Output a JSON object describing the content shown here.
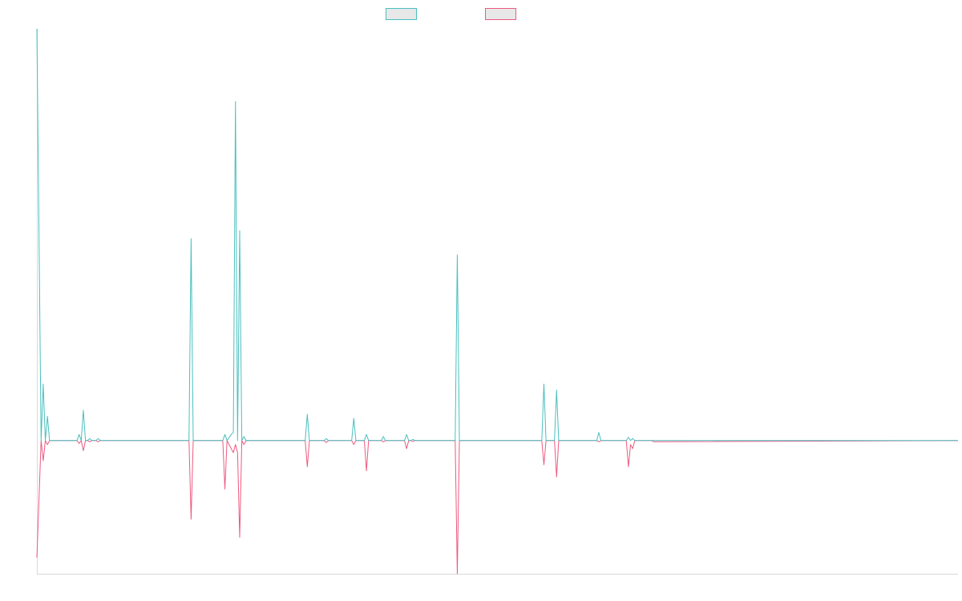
{
  "colors": {
    "teal": "#4bbfbf",
    "pink": "#ec5a80",
    "axis": "#d9d9d9",
    "legend_fill": "#e8e8e8"
  },
  "legend": [
    {
      "name": "",
      "color": "#4bbfbf"
    },
    {
      "name": "",
      "color": "#ec5a80"
    }
  ],
  "chart_data": {
    "type": "line",
    "title": "",
    "xlabel": "",
    "ylabel": "",
    "x_axis": {
      "min": 0,
      "max": 218,
      "ticks_shown": false
    },
    "y_axis": {
      "min": -33,
      "max": 102,
      "ticks_shown": false
    },
    "grid": false,
    "legend_position": "top-center",
    "series": [
      {
        "color": "#4bbfbf",
        "points": [
          [
            0,
            102
          ],
          [
            1,
            0
          ],
          [
            1.5,
            14
          ],
          [
            2,
            0
          ],
          [
            2.5,
            6
          ],
          [
            3,
            0
          ],
          [
            9.5,
            0
          ],
          [
            10,
            1.5
          ],
          [
            10.5,
            0
          ],
          [
            11,
            7.5
          ],
          [
            11.5,
            0
          ],
          [
            12,
            0
          ],
          [
            12.5,
            0.5
          ],
          [
            13,
            0
          ],
          [
            14,
            0
          ],
          [
            14.5,
            0.5
          ],
          [
            15,
            0
          ],
          [
            36,
            0
          ],
          [
            36.5,
            50
          ],
          [
            37,
            0
          ],
          [
            44,
            0
          ],
          [
            44.5,
            1.5
          ],
          [
            45,
            0
          ],
          [
            46,
            1.5
          ],
          [
            46.5,
            2
          ],
          [
            47,
            84
          ],
          [
            47.5,
            0
          ],
          [
            48,
            52
          ],
          [
            48.5,
            0
          ],
          [
            49,
            1
          ],
          [
            49.5,
            0
          ],
          [
            63.5,
            0
          ],
          [
            64,
            6.5
          ],
          [
            64.5,
            0
          ],
          [
            68,
            0
          ],
          [
            68.5,
            0.5
          ],
          [
            69,
            0
          ],
          [
            74.5,
            0
          ],
          [
            75,
            5.5
          ],
          [
            75.5,
            0
          ],
          [
            77.5,
            0
          ],
          [
            78,
            1.5
          ],
          [
            78.5,
            0
          ],
          [
            81.5,
            0
          ],
          [
            82,
            1
          ],
          [
            82.5,
            0
          ],
          [
            87,
            0
          ],
          [
            87.5,
            1.5
          ],
          [
            88,
            0
          ],
          [
            88.5,
            0
          ],
          [
            89,
            0.3
          ],
          [
            89.5,
            0
          ],
          [
            99,
            0
          ],
          [
            99.5,
            46
          ],
          [
            100,
            0
          ],
          [
            119.5,
            0
          ],
          [
            120,
            14
          ],
          [
            120.5,
            0
          ],
          [
            122.5,
            0
          ],
          [
            123,
            12.5
          ],
          [
            123.5,
            0
          ],
          [
            132.5,
            0
          ],
          [
            133,
            2
          ],
          [
            133.5,
            0
          ],
          [
            139.5,
            0
          ],
          [
            140,
            0.8
          ],
          [
            140.5,
            0
          ],
          [
            141,
            0.5
          ],
          [
            141.5,
            0
          ],
          [
            145.5,
            0
          ],
          [
            146,
            0
          ],
          [
            218,
            0
          ]
        ]
      },
      {
        "color": "#ec5a80",
        "points": [
          [
            0,
            -29
          ],
          [
            1,
            0
          ],
          [
            1.5,
            -5
          ],
          [
            2,
            0
          ],
          [
            2.5,
            -1
          ],
          [
            3,
            0
          ],
          [
            9.5,
            0
          ],
          [
            10,
            -0.7
          ],
          [
            10.5,
            0
          ],
          [
            11,
            -2.5
          ],
          [
            11.5,
            0
          ],
          [
            12,
            0
          ],
          [
            12.5,
            -0.3
          ],
          [
            13,
            0
          ],
          [
            14,
            0
          ],
          [
            14.5,
            -0.3
          ],
          [
            15,
            0
          ],
          [
            36,
            0
          ],
          [
            36.5,
            -19.5
          ],
          [
            37,
            0
          ],
          [
            44,
            0
          ],
          [
            44.5,
            -12
          ],
          [
            45,
            0
          ],
          [
            46,
            -2
          ],
          [
            46.5,
            -3
          ],
          [
            47,
            -1
          ],
          [
            47.5,
            -3
          ],
          [
            48,
            -24
          ],
          [
            48.5,
            0
          ],
          [
            49,
            -1
          ],
          [
            49.5,
            0
          ],
          [
            63.5,
            0
          ],
          [
            64,
            -6.5
          ],
          [
            64.5,
            0
          ],
          [
            68,
            0
          ],
          [
            68.5,
            -0.5
          ],
          [
            69,
            0
          ],
          [
            74.5,
            0
          ],
          [
            75,
            -1
          ],
          [
            75.5,
            0
          ],
          [
            77.5,
            0
          ],
          [
            78,
            -7.5
          ],
          [
            78.5,
            0
          ],
          [
            81.5,
            0
          ],
          [
            82,
            -0.3
          ],
          [
            82.5,
            0
          ],
          [
            87,
            0
          ],
          [
            87.5,
            -2
          ],
          [
            88,
            0
          ],
          [
            88.5,
            0
          ],
          [
            89,
            -0.2
          ],
          [
            89.5,
            0
          ],
          [
            99,
            0
          ],
          [
            99.5,
            -33
          ],
          [
            100,
            0
          ],
          [
            119.5,
            0
          ],
          [
            120,
            -6
          ],
          [
            120.5,
            0
          ],
          [
            122.5,
            0
          ],
          [
            123,
            -9
          ],
          [
            123.5,
            0
          ],
          [
            132.5,
            0
          ],
          [
            133,
            -0.3
          ],
          [
            133.5,
            0
          ],
          [
            139.5,
            0
          ],
          [
            140,
            -6.5
          ],
          [
            140.5,
            -1
          ],
          [
            141,
            -2
          ],
          [
            141.5,
            0
          ],
          [
            145.5,
            0
          ],
          [
            146,
            -0.3
          ],
          [
            218,
            0
          ]
        ]
      }
    ]
  }
}
